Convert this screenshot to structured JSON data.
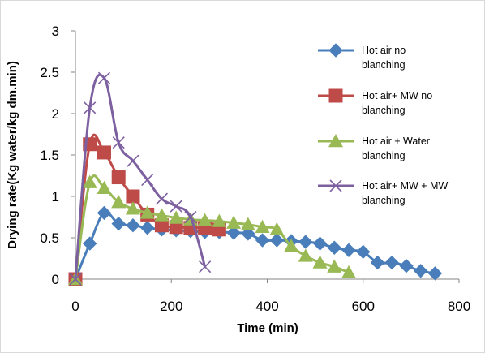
{
  "chart_data": {
    "type": "line",
    "xlabel": "Time (min)",
    "ylabel": "Drying rate(Kg water/kg dm.min)",
    "xlim": [
      0,
      800
    ],
    "ylim": [
      0,
      3
    ],
    "xticks": [
      0,
      200,
      400,
      600,
      800
    ],
    "yticks": [
      0,
      0.5,
      1,
      1.5,
      2,
      2.5,
      3
    ],
    "xtick_labels": [
      "0",
      "200",
      "400",
      "600",
      "800"
    ],
    "ytick_labels": [
      "0",
      "0.5",
      "1",
      "1.5",
      "2",
      "2.5",
      "3"
    ],
    "grid": false,
    "legend_position": "right",
    "series": [
      {
        "name": "Hot air no blanching",
        "legend_lines": [
          "Hot air no",
          "blanching"
        ],
        "color": "#4a7ebb",
        "marker": "diamond",
        "x": [
          0,
          30,
          60,
          90,
          120,
          150,
          180,
          210,
          240,
          270,
          300,
          330,
          360,
          390,
          420,
          450,
          480,
          510,
          540,
          570,
          600,
          630,
          660,
          690,
          720,
          750
        ],
        "y": [
          0,
          0.43,
          0.8,
          0.67,
          0.65,
          0.62,
          0.6,
          0.59,
          0.58,
          0.57,
          0.57,
          0.56,
          0.55,
          0.47,
          0.47,
          0.46,
          0.45,
          0.43,
          0.38,
          0.35,
          0.33,
          0.2,
          0.2,
          0.16,
          0.1,
          0.07
        ]
      },
      {
        "name": "Hot air+ MW no blanching",
        "legend_lines": [
          "Hot air+ MW no",
          "blanching"
        ],
        "color": "#be4b48",
        "marker": "square",
        "x": [
          0,
          30,
          60,
          90,
          120,
          150,
          180,
          210,
          240,
          270,
          300
        ],
        "y": [
          0,
          1.63,
          1.53,
          1.23,
          1.0,
          0.78,
          0.65,
          0.63,
          0.62,
          0.62,
          0.6
        ]
      },
      {
        "name": "Hot air + Water blanching",
        "legend_lines": [
          "Hot air + Water",
          "blanching"
        ],
        "color": "#98b954",
        "marker": "triangle",
        "x": [
          0,
          30,
          60,
          90,
          120,
          150,
          180,
          210,
          240,
          270,
          300,
          330,
          360,
          390,
          420,
          450,
          480,
          510,
          540,
          570
        ],
        "y": [
          0,
          1.17,
          1.1,
          0.93,
          0.85,
          0.8,
          0.77,
          0.74,
          0.72,
          0.71,
          0.7,
          0.68,
          0.66,
          0.63,
          0.6,
          0.4,
          0.28,
          0.2,
          0.15,
          0.08
        ]
      },
      {
        "name": "Hot air+ MW + MW blanching",
        "legend_lines": [
          "Hot air+ MW + MW",
          "blanching"
        ],
        "color": "#7d60a0",
        "marker": "x",
        "x": [
          0,
          30,
          60,
          90,
          120,
          150,
          180,
          210,
          240,
          270
        ],
        "y": [
          0,
          2.07,
          2.43,
          1.65,
          1.43,
          1.2,
          0.97,
          0.88,
          0.75,
          0.15
        ]
      }
    ]
  }
}
